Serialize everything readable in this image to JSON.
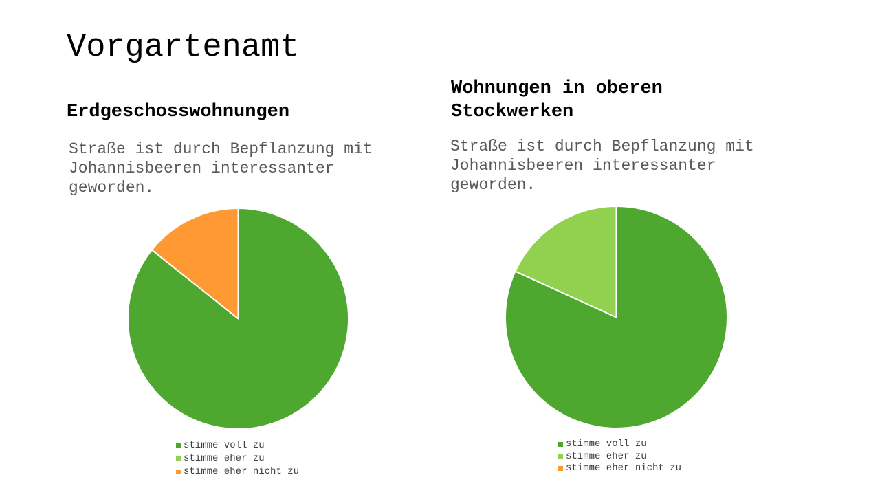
{
  "slide": {
    "title": "Vorgartenamt"
  },
  "legend_labels": [
    "stimme voll zu",
    "stimme eher zu",
    "stimme eher nicht zu"
  ],
  "colors": {
    "stimme_voll_zu": "#4ea72e",
    "stimme_eher_zu": "#92d050",
    "stimme_eher_nicht_zu": "#ff9933"
  },
  "chart_data": [
    {
      "type": "pie",
      "title": "Erdgeschosswohnungen",
      "subtitle": "Straße ist durch Bepflanzung mit Johannisbeeren interessanter geworden.",
      "categories": [
        "stimme voll zu",
        "stimme eher zu",
        "stimme eher nicht zu"
      ],
      "values": [
        85.7,
        0,
        14.3
      ],
      "colors": [
        "#4ea72e",
        "#92d050",
        "#ff9933"
      ],
      "legend": "bottom"
    },
    {
      "type": "pie",
      "title": "Wohnungen in oberen Stockwerken",
      "subtitle": "Straße ist durch Bepflanzung mit Johannisbeeren interessanter geworden.",
      "categories": [
        "stimme voll zu",
        "stimme eher zu",
        "stimme eher nicht zu"
      ],
      "values": [
        81.8,
        18.2,
        0
      ],
      "colors": [
        "#4ea72e",
        "#92d050",
        "#ff9933"
      ],
      "legend": "bottom"
    }
  ]
}
